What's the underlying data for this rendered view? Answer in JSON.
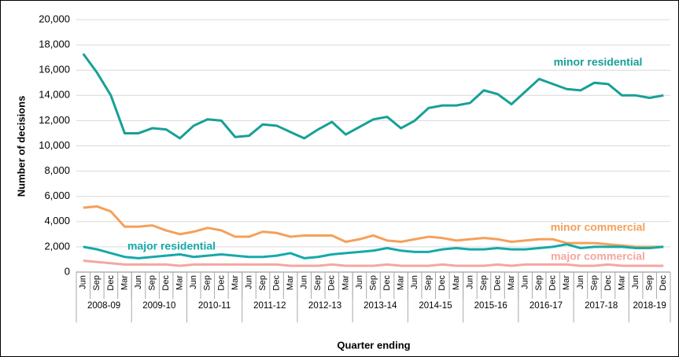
{
  "chart_data": {
    "type": "line",
    "categories": [
      "Jun",
      "Sep",
      "Dec",
      "Mar",
      "Jun",
      "Sep",
      "Dec",
      "Mar",
      "Jun",
      "Sep",
      "Dec",
      "Mar",
      "Jun",
      "Sep",
      "Dec",
      "Mar",
      "Jun",
      "Sep",
      "Dec",
      "Mar",
      "Jun",
      "Sep",
      "Dec",
      "Mar",
      "Jun",
      "Sep",
      "Dec",
      "Mar",
      "Jun",
      "Sep",
      "Dec",
      "Mar",
      "Jun",
      "Sep",
      "Dec",
      "Mar",
      "Jun",
      "Sep",
      "Dec",
      "Mar",
      "Jun",
      "Sep",
      "Dec"
    ],
    "groups": [
      "2008-09",
      "2009-10",
      "2010-11",
      "2011-12",
      "2012-13",
      "2013-14",
      "2014-15",
      "2015-16",
      "2016-17",
      "2017-18",
      "2018-19"
    ],
    "y_label": "Number of decisions",
    "x_label": "Quarter ending",
    "ylim": [
      0,
      20000
    ],
    "yticks": [
      0,
      {
        "value": 2000,
        "label": "2,000"
      },
      {
        "value": 4000,
        "label": "4,000"
      },
      {
        "value": 6000,
        "label": "6,000"
      },
      {
        "value": 8000,
        "label": "8,000"
      },
      {
        "value": 10000,
        "label": "10,000"
      },
      {
        "value": 12000,
        "label": "12,000"
      },
      {
        "value": 14000,
        "label": "14,000"
      },
      {
        "value": 16000,
        "label": "16,000"
      },
      {
        "value": 18000,
        "label": "18,000"
      },
      {
        "value": 20000,
        "label": "20,000"
      }
    ],
    "grid": true,
    "series": [
      {
        "name": "minor residential",
        "color": "#17a096",
        "values": [
          17300,
          15800,
          14000,
          11000,
          11000,
          11400,
          11300,
          10600,
          11600,
          12100,
          12000,
          10700,
          10800,
          11700,
          11600,
          11100,
          10600,
          11300,
          11900,
          10900,
          11500,
          12100,
          12300,
          11400,
          12000,
          13000,
          13200,
          13200,
          13400,
          14400,
          14100,
          13300,
          14300,
          15300,
          14900,
          14500,
          14400,
          15000,
          14900,
          14000,
          14000,
          13800,
          14000
        ]
      },
      {
        "name": "minor commercial",
        "color": "#f5a05a",
        "values": [
          5100,
          5200,
          4800,
          3600,
          3600,
          3700,
          3300,
          3000,
          3200,
          3500,
          3300,
          2800,
          2800,
          3200,
          3100,
          2800,
          2900,
          2900,
          2900,
          2400,
          2600,
          2900,
          2500,
          2400,
          2600,
          2800,
          2700,
          2500,
          2600,
          2700,
          2600,
          2400,
          2500,
          2600,
          2600,
          2300,
          2300,
          2300,
          2200,
          2100,
          2000,
          2000,
          2000
        ]
      },
      {
        "name": "major residential",
        "color": "#17a9a9",
        "values": [
          2000,
          1800,
          1500,
          1200,
          1100,
          1200,
          1300,
          1400,
          1200,
          1300,
          1400,
          1300,
          1200,
          1200,
          1300,
          1500,
          1100,
          1200,
          1400,
          1500,
          1600,
          1700,
          1900,
          1700,
          1600,
          1600,
          1800,
          1900,
          1800,
          1800,
          1900,
          1800,
          1800,
          1900,
          2000,
          2200,
          1900,
          2000,
          2000,
          2000,
          1900,
          1900,
          2000
        ]
      },
      {
        "name": "major commercial",
        "color": "#f4a7a0",
        "values": [
          900,
          800,
          700,
          600,
          600,
          600,
          600,
          500,
          600,
          600,
          600,
          600,
          600,
          600,
          600,
          500,
          500,
          500,
          600,
          500,
          500,
          500,
          600,
          500,
          500,
          500,
          600,
          500,
          500,
          500,
          600,
          500,
          600,
          600,
          600,
          600,
          500,
          500,
          600,
          500,
          500,
          500,
          500
        ]
      }
    ]
  }
}
